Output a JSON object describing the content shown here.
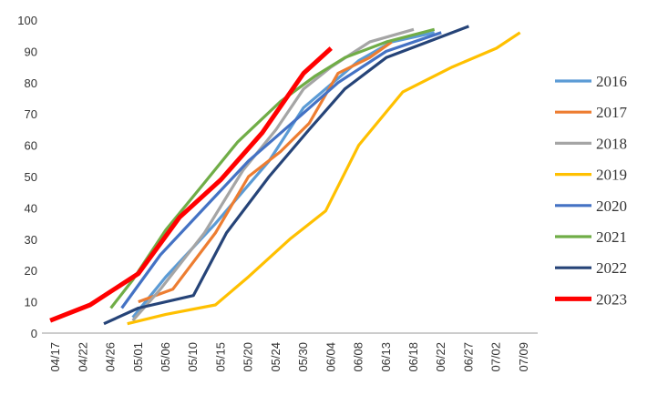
{
  "chart_data": {
    "type": "line",
    "title": "",
    "xlabel": "",
    "ylabel": "",
    "ylim": [
      0,
      100
    ],
    "yticks": [
      0,
      10,
      20,
      30,
      40,
      50,
      60,
      70,
      80,
      90,
      100
    ],
    "grid": false,
    "legend_position": "right",
    "x_ticks": [
      "04/17",
      "04/22",
      "04/26",
      "05/01",
      "05/06",
      "05/10",
      "05/15",
      "05/20",
      "05/24",
      "05/30",
      "06/04",
      "06/08",
      "06/13",
      "06/18",
      "06/22",
      "06/27",
      "07/02",
      "07/09"
    ],
    "series": [
      {
        "name": "2016",
        "color": "#5b9bd5",
        "points": [
          [
            "04/30",
            5
          ],
          [
            "05/06",
            18
          ],
          [
            "05/14",
            35
          ],
          [
            "05/23",
            55
          ],
          [
            "05/30",
            72
          ],
          [
            "06/08",
            87
          ],
          [
            "06/14",
            93
          ],
          [
            "06/21",
            96
          ]
        ]
      },
      {
        "name": "2017",
        "color": "#ed7d31",
        "points": [
          [
            "05/01",
            10
          ],
          [
            "05/07",
            14
          ],
          [
            "05/14",
            32
          ],
          [
            "05/20",
            50
          ],
          [
            "05/25",
            58
          ],
          [
            "05/31",
            67
          ],
          [
            "06/05",
            83
          ],
          [
            "06/10",
            88
          ],
          [
            "06/14",
            93
          ]
        ]
      },
      {
        "name": "2018",
        "color": "#a5a5a5",
        "points": [
          [
            "04/30",
            4
          ],
          [
            "05/05",
            14
          ],
          [
            "05/12",
            32
          ],
          [
            "05/19",
            52
          ],
          [
            "05/24",
            65
          ],
          [
            "05/30",
            78
          ],
          [
            "06/04",
            85
          ],
          [
            "06/10",
            93
          ],
          [
            "06/18",
            97
          ]
        ]
      },
      {
        "name": "2019",
        "color": "#ffc000",
        "points": [
          [
            "04/29",
            3
          ],
          [
            "05/06",
            6
          ],
          [
            "05/14",
            9
          ],
          [
            "05/20",
            18
          ],
          [
            "05/27",
            30
          ],
          [
            "06/03",
            39
          ],
          [
            "06/08",
            60
          ],
          [
            "06/16",
            77
          ],
          [
            "06/24",
            85
          ],
          [
            "07/02",
            91
          ],
          [
            "07/08",
            96
          ]
        ]
      },
      {
        "name": "2020",
        "color": "#4472c4",
        "points": [
          [
            "04/28",
            8
          ],
          [
            "05/05",
            25
          ],
          [
            "05/12",
            40
          ],
          [
            "05/20",
            55
          ],
          [
            "05/29",
            69
          ],
          [
            "06/05",
            80
          ],
          [
            "06/13",
            90
          ],
          [
            "06/22",
            96
          ]
        ]
      },
      {
        "name": "2021",
        "color": "#70ad47",
        "points": [
          [
            "04/26",
            8
          ],
          [
            "04/30",
            17
          ],
          [
            "05/06",
            33
          ],
          [
            "05/12",
            48
          ],
          [
            "05/18",
            61
          ],
          [
            "05/25",
            74
          ],
          [
            "06/01",
            82
          ],
          [
            "06/06",
            88
          ],
          [
            "06/13",
            93
          ],
          [
            "06/21",
            97
          ]
        ]
      },
      {
        "name": "2022",
        "color": "#264478",
        "points": [
          [
            "04/25",
            3
          ],
          [
            "05/01",
            8
          ],
          [
            "05/10",
            12
          ],
          [
            "05/16",
            32
          ],
          [
            "05/23",
            50
          ],
          [
            "05/31",
            65
          ],
          [
            "06/06",
            78
          ],
          [
            "06/13",
            88
          ],
          [
            "06/20",
            93
          ],
          [
            "06/27",
            98
          ]
        ]
      },
      {
        "name": "2023",
        "color": "#ff0000",
        "points": [
          [
            "04/16",
            4
          ],
          [
            "04/23",
            9
          ],
          [
            "05/01",
            19
          ],
          [
            "05/08",
            37
          ],
          [
            "05/15",
            49
          ],
          [
            "05/22",
            64
          ],
          [
            "05/30",
            83
          ],
          [
            "06/04",
            91
          ]
        ]
      }
    ]
  }
}
